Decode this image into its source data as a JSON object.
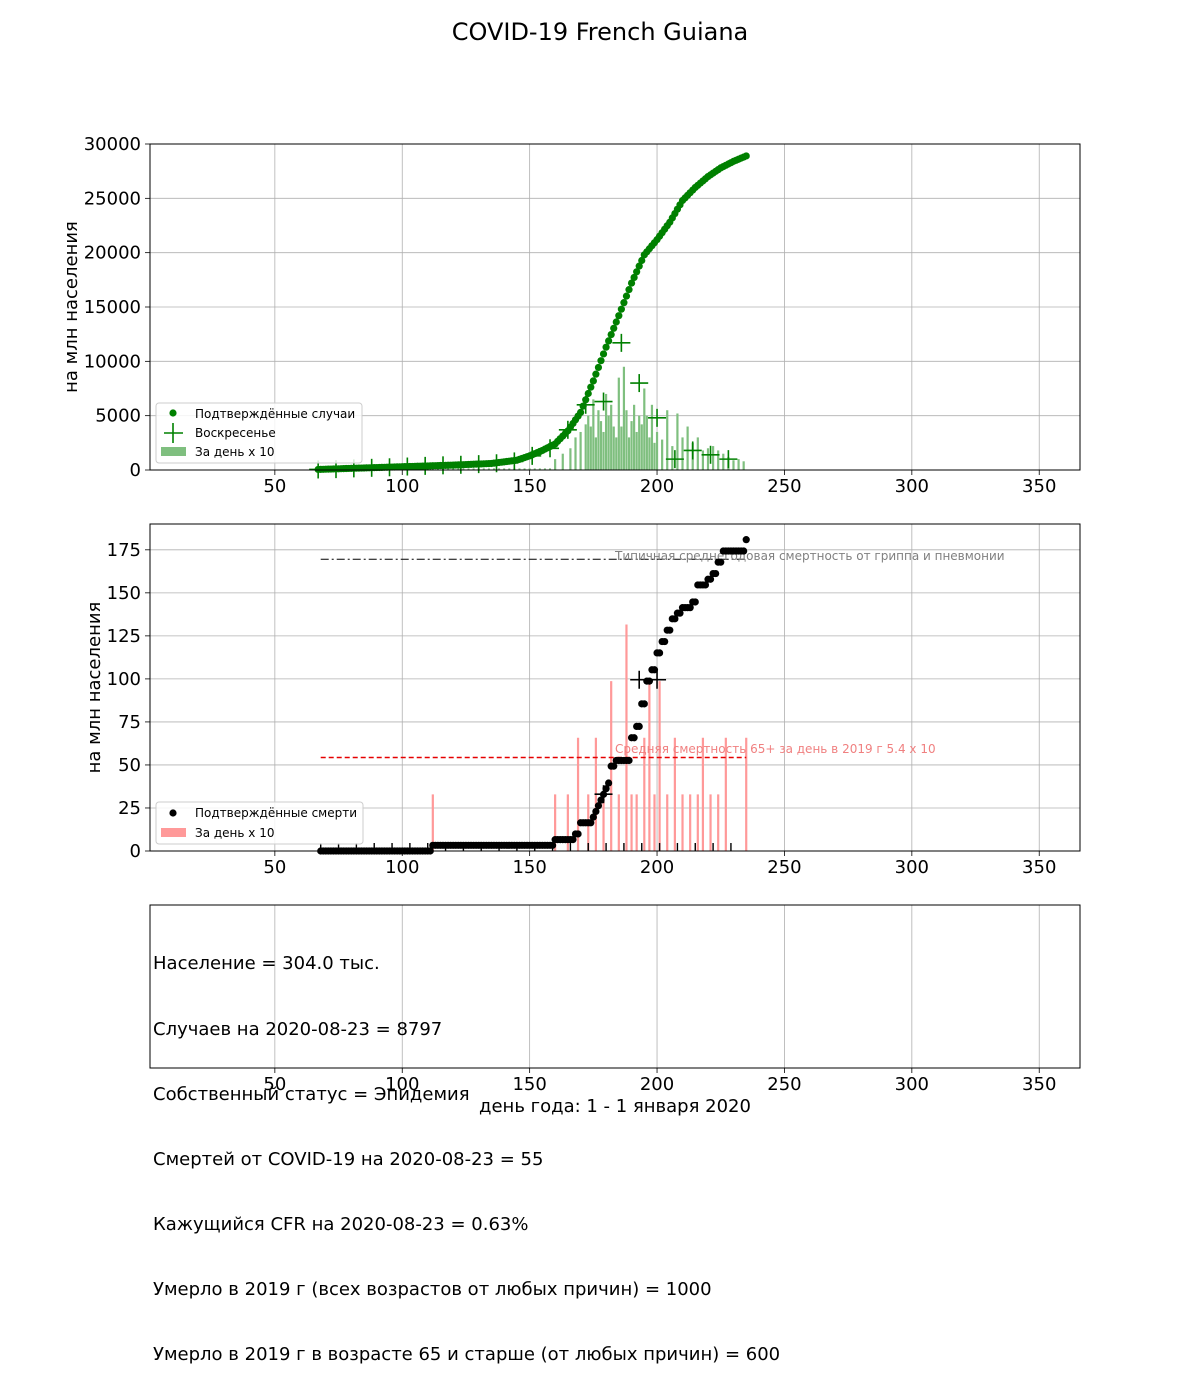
{
  "figure": {
    "title": "COVID-19 French Guiana",
    "xlabel": "день года: 1 - 1 января 2020",
    "x_ticks": [
      50,
      100,
      150,
      200,
      250,
      300,
      350
    ],
    "xlim": [
      1,
      366
    ]
  },
  "chart_data": [
    {
      "type": "scatter",
      "panel": "cases",
      "ylabel": "на млн населения",
      "ylim": [
        0,
        30000
      ],
      "y_ticks": [
        0,
        5000,
        10000,
        15000,
        20000,
        25000,
        30000
      ],
      "grid": true,
      "legend_position": "lower-left",
      "legend": [
        "Подтверждённые случаи",
        "Воскресенье",
        "За день x 10"
      ],
      "colors": {
        "cumulative": "#008000",
        "daily_bar": "#7fbf7f"
      },
      "cumulative_curve": {
        "x": [
          67,
          80,
          100,
          120,
          135,
          145,
          150,
          155,
          160,
          165,
          170,
          175,
          180,
          185,
          190,
          195,
          200,
          205,
          210,
          215,
          220,
          225,
          230,
          235
        ],
        "y": [
          50,
          150,
          300,
          450,
          600,
          900,
          1300,
          1800,
          2400,
          3600,
          5300,
          8200,
          11300,
          14200,
          17200,
          19800,
          21200,
          22800,
          24800,
          26000,
          27000,
          27800,
          28400,
          28900
        ]
      },
      "sundays": {
        "x": [
          67,
          74,
          81,
          88,
          95,
          102,
          109,
          116,
          123,
          130,
          137,
          144,
          151,
          158,
          165,
          172,
          179,
          186,
          193,
          200,
          207,
          214,
          221,
          228
        ],
        "y": [
          50,
          80,
          150,
          200,
          250,
          320,
          380,
          430,
          480,
          540,
          620,
          790,
          1300,
          2000,
          3700,
          6000,
          6300,
          11700,
          8000,
          4800,
          1000,
          1800,
          1400,
          1000
        ]
      },
      "daily_x10": {
        "x": [
          160,
          163,
          166,
          168,
          170,
          172,
          173,
          174,
          175,
          176,
          177,
          178,
          179,
          180,
          181,
          182,
          183,
          184,
          185,
          186,
          187,
          188,
          189,
          190,
          191,
          192,
          193,
          194,
          195,
          196,
          197,
          198,
          199,
          200,
          202,
          204,
          206,
          208,
          210,
          212,
          214,
          216,
          218,
          220,
          222,
          224,
          226,
          228,
          230,
          232,
          234
        ],
        "y": [
          1000,
          1500,
          2000,
          3000,
          3500,
          4200,
          5000,
          4000,
          6500,
          3000,
          5500,
          4500,
          3500,
          7000,
          5000,
          6000,
          4000,
          3000,
          8500,
          4000,
          9500,
          5500,
          3000,
          4500,
          6000,
          3500,
          5000,
          4200,
          7500,
          5000,
          3000,
          6000,
          2500,
          3500,
          2800,
          5500,
          2200,
          5200,
          3000,
          4000,
          2500,
          3000,
          1800,
          2000,
          2200,
          1800,
          1500,
          1200,
          900,
          1000,
          800
        ]
      }
    },
    {
      "type": "scatter",
      "panel": "deaths",
      "ylabel": "на млн населения",
      "ylim": [
        0,
        190
      ],
      "y_ticks": [
        0,
        25,
        50,
        75,
        100,
        125,
        150,
        175
      ],
      "grid": true,
      "legend_position": "lower-left",
      "legend": [
        "Подтверждённые смерти",
        "За день x 10"
      ],
      "colors": {
        "cumulative": "#000000",
        "daily_bar": "#ff9999",
        "ref_flu": "#000000",
        "ref_65": "#e60000"
      },
      "annotations": {
        "flu": "Типичная среднегодовая смертность от гриппа и пневмонии",
        "over65": "Средняя смертность 65+ за день в 2019 г 5.4 x 10"
      },
      "ref_lines": {
        "flu_y": 169.5,
        "over65_y": 54.3,
        "x_start": 68,
        "x_end": 235
      },
      "cumulative_steps": {
        "x": [
          68,
          112,
          160,
          168,
          170,
          175,
          176,
          177,
          178,
          179,
          180,
          181,
          182,
          183,
          184,
          185,
          186,
          188,
          190,
          192,
          194,
          196,
          198,
          200,
          202,
          204,
          206,
          208,
          210,
          212,
          214,
          216,
          218,
          220,
          222,
          224,
          226,
          228,
          232,
          235
        ],
        "y": [
          0,
          3.3,
          6.6,
          9.9,
          16.4,
          19.7,
          23,
          26.3,
          29.6,
          32.9,
          36.2,
          39.5,
          49.3,
          49.3,
          52.6,
          52.6,
          52.6,
          52.6,
          65.8,
          72.4,
          85.5,
          98.7,
          105.3,
          115.1,
          121.7,
          128.3,
          134.9,
          138.2,
          141.4,
          141.4,
          144.7,
          154.6,
          154.6,
          157.9,
          161.2,
          167.8,
          174.3,
          174.3,
          174.3,
          180.9
        ]
      },
      "daily_x10": {
        "x": [
          112,
          160,
          165,
          169,
          173,
          176,
          179,
          182,
          185,
          188,
          190,
          192,
          195,
          197,
          199,
          201,
          204,
          207,
          210,
          213,
          216,
          218,
          221,
          224,
          227,
          235
        ],
        "y": [
          32.9,
          32.9,
          32.9,
          65.8,
          32.9,
          65.8,
          32.9,
          98.7,
          32.9,
          131.6,
          32.9,
          32.9,
          65.8,
          98.7,
          32.9,
          98.7,
          32.9,
          65.8,
          32.9,
          32.9,
          32.9,
          65.8,
          32.9,
          32.9,
          65.8,
          65.8
        ]
      }
    }
  ],
  "info": {
    "lines": [
      "Население = 304.0 тыс.",
      "Случаев на 2020-08-23 = 8797",
      "Собственный статус = Эпидемия",
      "Смертей от COVID-19 на 2020-08-23 = 55",
      "Кажущийся CFR на 2020-08-23 = 0.63%",
      "Умерло в 2019 г (всех возрастов от любых причин) = 1000",
      "Умерло в 2019 г в возрасте 65 и старше (от любых причин) = 600"
    ]
  }
}
